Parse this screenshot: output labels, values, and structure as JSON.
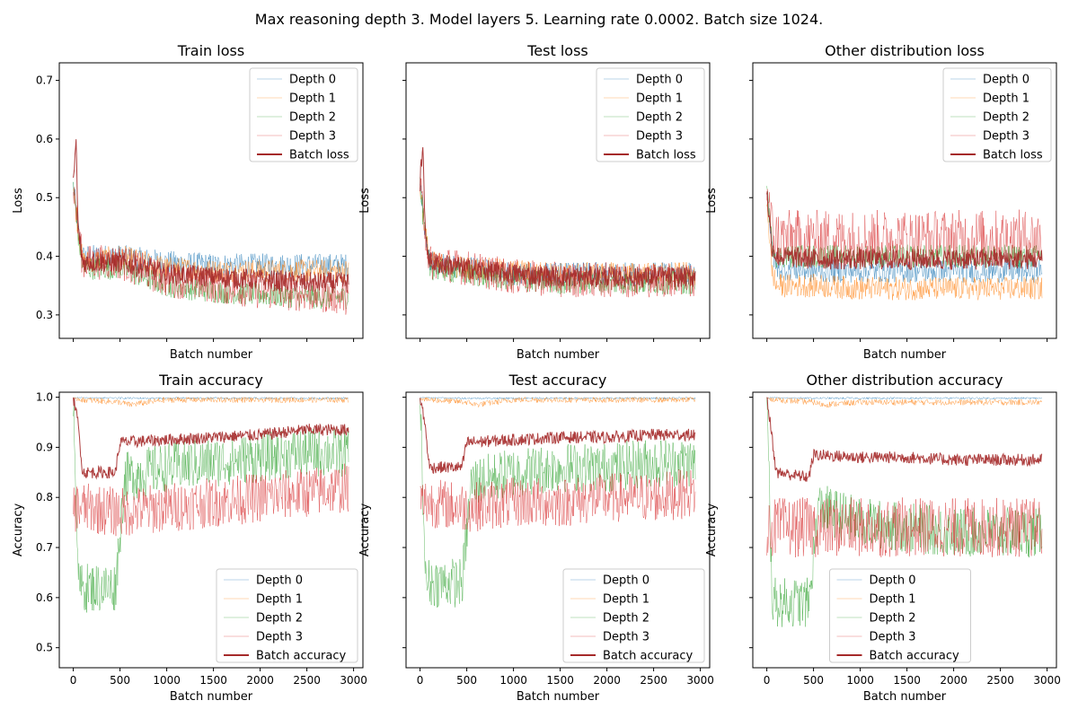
{
  "figure": {
    "suptitle": "Max reasoning depth 3. Model layers 5. Learning rate 0.0002. Batch size 1024."
  },
  "colors": {
    "depth0": "#1f77b4",
    "depth1": "#ff7f0e",
    "depth2": "#2ca02c",
    "depth3": "#d62728",
    "batch": "#a52a2a"
  },
  "chart_data": [
    {
      "type": "line",
      "title": "Train loss",
      "xlabel": "Batch number",
      "ylabel": "Loss",
      "xlim": [
        -150,
        3100
      ],
      "ylim": [
        0.26,
        0.73
      ],
      "xticks": [
        0,
        500,
        1000,
        1500,
        2000,
        2500,
        3000
      ],
      "show_xtick_labels": false,
      "yticks": [
        0.3,
        0.4,
        0.5,
        0.6,
        0.7
      ],
      "yticklabels": [
        "0.3",
        "0.4",
        "0.5",
        "0.6",
        "0.7"
      ],
      "legend": "top-right",
      "series": [
        {
          "name": "Depth 0",
          "x": [
            0,
            50,
            100,
            500,
            1000,
            1500,
            2000,
            2500,
            2950
          ],
          "values": [
            0.52,
            0.45,
            0.4,
            0.4,
            0.39,
            0.385,
            0.385,
            0.385,
            0.385
          ]
        },
        {
          "name": "Depth 1",
          "x": [
            0,
            50,
            100,
            500,
            1000,
            1500,
            2000,
            2500,
            2950
          ],
          "values": [
            0.52,
            0.45,
            0.39,
            0.4,
            0.38,
            0.375,
            0.375,
            0.375,
            0.375
          ]
        },
        {
          "name": "Depth 2",
          "x": [
            0,
            50,
            100,
            500,
            1000,
            1500,
            2000,
            2500,
            2950
          ],
          "values": [
            0.52,
            0.44,
            0.38,
            0.38,
            0.35,
            0.34,
            0.335,
            0.33,
            0.33
          ]
        },
        {
          "name": "Depth 3",
          "x": [
            0,
            50,
            100,
            500,
            1000,
            1500,
            2000,
            2500,
            2950
          ],
          "values": [
            0.52,
            0.45,
            0.39,
            0.39,
            0.36,
            0.35,
            0.34,
            0.335,
            0.33
          ]
        },
        {
          "name": "Batch loss",
          "x": [
            0,
            30,
            50,
            100,
            500,
            1000,
            1500,
            2000,
            2500,
            2950
          ],
          "values": [
            0.52,
            0.6,
            0.45,
            0.39,
            0.39,
            0.37,
            0.365,
            0.36,
            0.355,
            0.355
          ]
        }
      ]
    },
    {
      "type": "line",
      "title": "Test loss",
      "xlabel": "Batch number",
      "ylabel": "Loss",
      "xlim": [
        -150,
        3100
      ],
      "ylim": [
        0.26,
        0.73
      ],
      "xticks": [
        0,
        500,
        1000,
        1500,
        2000,
        2500,
        3000
      ],
      "show_xtick_labels": false,
      "yticks": [
        0.3,
        0.4,
        0.5,
        0.6,
        0.7
      ],
      "yticklabels": [],
      "legend": "top-right",
      "series": [
        {
          "name": "Depth 0",
          "x": [
            0,
            50,
            100,
            500,
            1000,
            1500,
            2000,
            2500,
            2950
          ],
          "values": [
            0.52,
            0.45,
            0.39,
            0.38,
            0.37,
            0.37,
            0.37,
            0.37,
            0.37
          ]
        },
        {
          "name": "Depth 1",
          "x": [
            0,
            50,
            100,
            500,
            1000,
            1500,
            2000,
            2500,
            2950
          ],
          "values": [
            0.52,
            0.45,
            0.39,
            0.38,
            0.375,
            0.37,
            0.37,
            0.37,
            0.37
          ]
        },
        {
          "name": "Depth 2",
          "x": [
            0,
            50,
            100,
            500,
            1000,
            1500,
            2000,
            2500,
            2950
          ],
          "values": [
            0.52,
            0.44,
            0.38,
            0.37,
            0.36,
            0.355,
            0.355,
            0.355,
            0.355
          ]
        },
        {
          "name": "Depth 3",
          "x": [
            0,
            50,
            100,
            500,
            1000,
            1500,
            2000,
            2500,
            2950
          ],
          "values": [
            0.52,
            0.45,
            0.39,
            0.38,
            0.365,
            0.36,
            0.36,
            0.36,
            0.36
          ]
        },
        {
          "name": "Batch loss",
          "x": [
            0,
            30,
            50,
            100,
            500,
            1000,
            1500,
            2000,
            2500,
            2950
          ],
          "values": [
            0.52,
            0.6,
            0.45,
            0.39,
            0.38,
            0.37,
            0.365,
            0.365,
            0.365,
            0.365
          ]
        }
      ]
    },
    {
      "type": "line",
      "title": "Other distribution loss",
      "xlabel": "Batch number",
      "ylabel": "Loss",
      "xlim": [
        -150,
        3100
      ],
      "ylim": [
        0.26,
        0.73
      ],
      "xticks": [
        0,
        500,
        1000,
        1500,
        2000,
        2500,
        3000
      ],
      "show_xtick_labels": false,
      "yticks": [
        0.3,
        0.4,
        0.5,
        0.6,
        0.7
      ],
      "yticklabels": [],
      "legend": "top-right",
      "series": [
        {
          "name": "Depth 0",
          "x": [
            0,
            50,
            100,
            500,
            1000,
            1500,
            2000,
            2500,
            2950
          ],
          "values": [
            0.52,
            0.42,
            0.38,
            0.375,
            0.375,
            0.375,
            0.375,
            0.375,
            0.375
          ]
        },
        {
          "name": "Depth 1",
          "x": [
            0,
            50,
            100,
            500,
            1000,
            1500,
            2000,
            2500,
            2950
          ],
          "values": [
            0.5,
            0.38,
            0.35,
            0.35,
            0.345,
            0.345,
            0.345,
            0.345,
            0.345
          ]
        },
        {
          "name": "Depth 2",
          "x": [
            0,
            50,
            100,
            500,
            1000,
            1500,
            2000,
            2500,
            2950
          ],
          "values": [
            0.52,
            0.43,
            0.4,
            0.4,
            0.4,
            0.4,
            0.4,
            0.4,
            0.4
          ]
        },
        {
          "name": "Depth 3",
          "x": [
            0,
            50,
            100,
            500,
            1000,
            1500,
            2000,
            2500,
            2950
          ],
          "values": [
            0.52,
            0.45,
            0.43,
            0.43,
            0.43,
            0.43,
            0.43,
            0.43,
            0.43
          ]
        },
        {
          "name": "Batch loss",
          "x": [
            0,
            50,
            100,
            500,
            1000,
            1500,
            2000,
            2500,
            2950
          ],
          "values": [
            0.51,
            0.42,
            0.4,
            0.395,
            0.395,
            0.395,
            0.395,
            0.395,
            0.395
          ]
        }
      ]
    },
    {
      "type": "line",
      "title": "Train accuracy",
      "xlabel": "Batch number",
      "ylabel": "Accuracy",
      "xlim": [
        -150,
        3100
      ],
      "ylim": [
        0.46,
        1.01
      ],
      "xticks": [
        0,
        500,
        1000,
        1500,
        2000,
        2500,
        3000
      ],
      "show_xtick_labels": true,
      "xticklabels": [
        "0",
        "500",
        "1000",
        "1500",
        "2000",
        "2500",
        "3000"
      ],
      "yticks": [
        0.5,
        0.6,
        0.7,
        0.8,
        0.9,
        1.0
      ],
      "yticklabels": [
        "0.5",
        "0.6",
        "0.7",
        "0.8",
        "0.9",
        "1.0"
      ],
      "legend": "bottom-right",
      "series": [
        {
          "name": "Depth 0",
          "x": [
            0,
            500,
            1000,
            1500,
            2000,
            2500,
            2950
          ],
          "values": [
            1.0,
            0.998,
            0.998,
            0.998,
            0.998,
            0.998,
            0.998
          ]
        },
        {
          "name": "Depth 1",
          "x": [
            0,
            100,
            500,
            600,
            1000,
            1500,
            2000,
            2500,
            2950
          ],
          "values": [
            1.0,
            0.995,
            0.99,
            0.985,
            0.995,
            0.995,
            0.995,
            0.995,
            0.995
          ]
        },
        {
          "name": "Depth 2",
          "x": [
            0,
            60,
            100,
            300,
            450,
            550,
            1000,
            1500,
            2000,
            2500,
            2950
          ],
          "values": [
            1.0,
            0.62,
            0.62,
            0.62,
            0.62,
            0.84,
            0.86,
            0.87,
            0.88,
            0.89,
            0.89
          ]
        },
        {
          "name": "Depth 3",
          "x": [
            0,
            100,
            500,
            1000,
            1500,
            2000,
            2500,
            2950
          ],
          "values": [
            0.78,
            0.78,
            0.77,
            0.78,
            0.79,
            0.8,
            0.81,
            0.82
          ]
        },
        {
          "name": "Batch accuracy",
          "x": [
            0,
            50,
            100,
            450,
            500,
            1000,
            1500,
            2000,
            2500,
            2950
          ],
          "values": [
            1.0,
            0.95,
            0.85,
            0.85,
            0.91,
            0.915,
            0.92,
            0.925,
            0.935,
            0.935
          ]
        }
      ]
    },
    {
      "type": "line",
      "title": "Test accuracy",
      "xlabel": "Batch number",
      "ylabel": "Accuracy",
      "xlim": [
        -150,
        3100
      ],
      "ylim": [
        0.46,
        1.01
      ],
      "xticks": [
        0,
        500,
        1000,
        1500,
        2000,
        2500,
        3000
      ],
      "show_xtick_labels": true,
      "xticklabels": [
        "0",
        "500",
        "1000",
        "1500",
        "2000",
        "2500",
        "3000"
      ],
      "yticks": [
        0.5,
        0.6,
        0.7,
        0.8,
        0.9,
        1.0
      ],
      "yticklabels": [],
      "legend": "bottom-right",
      "series": [
        {
          "name": "Depth 0",
          "x": [
            0,
            500,
            1000,
            1500,
            2000,
            2500,
            2950
          ],
          "values": [
            1.0,
            0.998,
            0.998,
            0.998,
            0.998,
            0.998,
            0.998
          ]
        },
        {
          "name": "Depth 1",
          "x": [
            0,
            100,
            500,
            600,
            1000,
            1500,
            2000,
            2500,
            2950
          ],
          "values": [
            1.0,
            0.995,
            0.99,
            0.985,
            0.995,
            0.995,
            0.995,
            0.995,
            0.995
          ]
        },
        {
          "name": "Depth 2",
          "x": [
            0,
            60,
            100,
            300,
            450,
            550,
            1000,
            1500,
            2000,
            2500,
            2950
          ],
          "values": [
            1.0,
            0.63,
            0.63,
            0.63,
            0.63,
            0.83,
            0.85,
            0.86,
            0.86,
            0.87,
            0.87
          ]
        },
        {
          "name": "Depth 3",
          "x": [
            0,
            100,
            500,
            1000,
            1500,
            2000,
            2500,
            2950
          ],
          "values": [
            0.79,
            0.79,
            0.78,
            0.79,
            0.79,
            0.8,
            0.8,
            0.81
          ]
        },
        {
          "name": "Batch accuracy",
          "x": [
            0,
            50,
            100,
            450,
            500,
            1000,
            1500,
            2000,
            2500,
            2950
          ],
          "values": [
            1.0,
            0.95,
            0.86,
            0.86,
            0.91,
            0.915,
            0.92,
            0.92,
            0.925,
            0.925
          ]
        }
      ]
    },
    {
      "type": "line",
      "title": "Other distribution accuracy",
      "xlabel": "Batch number",
      "ylabel": "Accuracy",
      "xlim": [
        -150,
        3100
      ],
      "ylim": [
        0.46,
        1.01
      ],
      "xticks": [
        0,
        500,
        1000,
        1500,
        2000,
        2500,
        3000
      ],
      "show_xtick_labels": true,
      "xticklabels": [
        "0",
        "500",
        "1000",
        "1500",
        "2000",
        "2500",
        "3000"
      ],
      "yticks": [
        0.5,
        0.6,
        0.7,
        0.8,
        0.9,
        1.0
      ],
      "yticklabels": [],
      "legend": "bottom-center",
      "series": [
        {
          "name": "Depth 0",
          "x": [
            0,
            500,
            1000,
            1500,
            2000,
            2500,
            2950
          ],
          "values": [
            1.0,
            0.998,
            0.998,
            0.998,
            0.998,
            0.998,
            0.998
          ]
        },
        {
          "name": "Depth 1",
          "x": [
            0,
            100,
            500,
            600,
            1000,
            1500,
            2000,
            2500,
            2950
          ],
          "values": [
            1.0,
            0.995,
            0.99,
            0.985,
            0.99,
            0.99,
            0.99,
            0.99,
            0.99
          ]
        },
        {
          "name": "Depth 2",
          "x": [
            0,
            60,
            100,
            300,
            450,
            550,
            1000,
            1500,
            2000,
            2500,
            2950
          ],
          "values": [
            1.0,
            0.59,
            0.59,
            0.59,
            0.59,
            0.78,
            0.75,
            0.74,
            0.73,
            0.73,
            0.73
          ]
        },
        {
          "name": "Depth 3",
          "x": [
            0,
            100,
            500,
            1000,
            1500,
            2000,
            2500,
            2950
          ],
          "values": [
            0.74,
            0.74,
            0.74,
            0.74,
            0.74,
            0.74,
            0.74,
            0.74
          ]
        },
        {
          "name": "Batch accuracy",
          "x": [
            0,
            50,
            100,
            450,
            500,
            1000,
            1500,
            2000,
            2500,
            2950
          ],
          "values": [
            1.0,
            0.93,
            0.85,
            0.84,
            0.885,
            0.88,
            0.88,
            0.875,
            0.875,
            0.875
          ]
        }
      ]
    }
  ]
}
